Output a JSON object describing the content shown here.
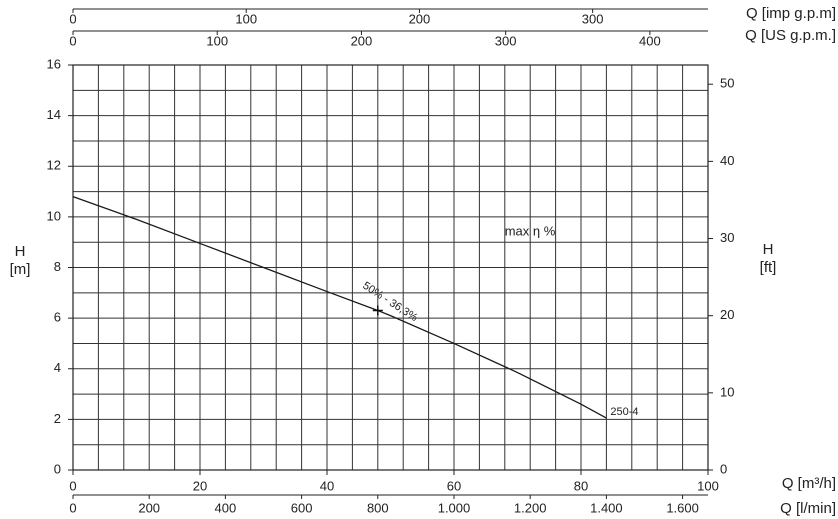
{
  "chart_data": {
    "type": "line",
    "ylabel": [
      "H",
      "[m]"
    ],
    "y2label": [
      "H",
      "[ft]"
    ],
    "ylim": [
      0,
      16
    ],
    "yticks": [
      0,
      2,
      4,
      6,
      8,
      10,
      12,
      14,
      16
    ],
    "yminor": [
      0,
      1,
      2,
      3,
      4,
      5,
      6,
      7,
      8,
      9,
      10,
      11,
      12,
      13,
      14,
      15,
      16
    ],
    "y2lim": [
      0,
      52.49
    ],
    "y2ticks": [
      0,
      10,
      20,
      30,
      40,
      50
    ],
    "xlim": [
      0,
      100
    ],
    "xminor": [
      0,
      4,
      8,
      12,
      16,
      20,
      24,
      28,
      32,
      36,
      40,
      44,
      48,
      52,
      56,
      60,
      64,
      68,
      72,
      76,
      80,
      84,
      88,
      92,
      96,
      100
    ],
    "grid": true,
    "x_axes": [
      {
        "label": "Q [imp g.p.m]",
        "position": "top",
        "lim": [
          0,
          366.6
        ],
        "ticks": [
          0,
          100,
          200,
          300
        ]
      },
      {
        "label": "Q [US g.p.m.]",
        "position": "top",
        "lim": [
          0,
          440.3
        ],
        "ticks": [
          0,
          100,
          200,
          300,
          400
        ]
      },
      {
        "label": "Q [m³/h]",
        "position": "bottom",
        "lim": [
          0,
          100
        ],
        "ticks": [
          0,
          20,
          40,
          60,
          80,
          100
        ]
      },
      {
        "label": "Q [l/min]",
        "position": "bottom",
        "lim": [
          0,
          1666.7
        ],
        "ticks": [
          0,
          200,
          400,
          600,
          800,
          {
            "value": 1000,
            "label": "1.000"
          },
          {
            "value": 1200,
            "label": "1.200"
          },
          {
            "value": 1400,
            "label": "1.400"
          },
          {
            "value": 1600,
            "label": "1.600"
          }
        ]
      }
    ],
    "series": [
      {
        "name": "250-4",
        "color": "#1a1a1a",
        "x": [
          0,
          10,
          20,
          30,
          40,
          48,
          50,
          60,
          70,
          80,
          84
        ],
        "values": [
          10.8,
          9.9,
          8.95,
          8.0,
          7.05,
          6.3,
          6.1,
          5.0,
          3.85,
          2.6,
          2.05
        ]
      }
    ],
    "bep": {
      "x": 48,
      "y": 6.3
    },
    "annotations": [
      "max η %",
      "50% - 36,3%"
    ]
  }
}
